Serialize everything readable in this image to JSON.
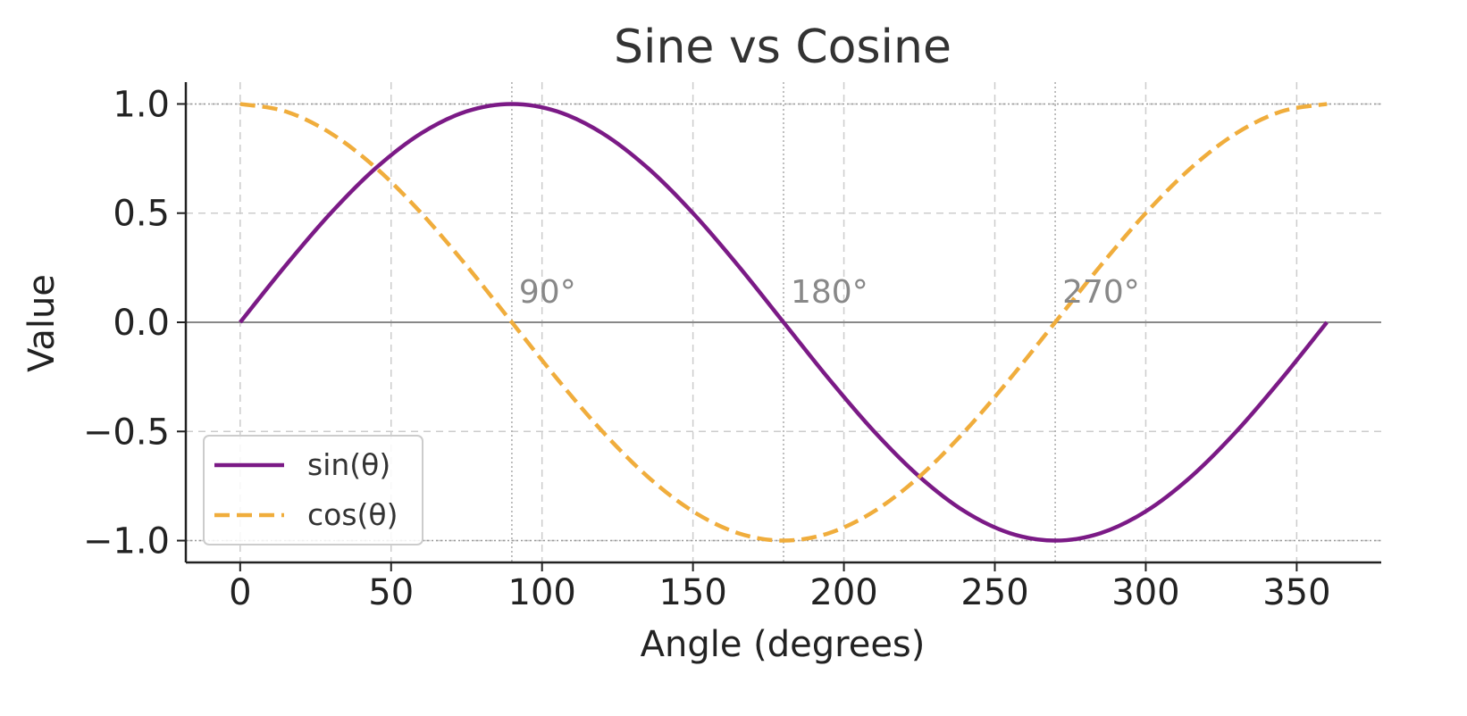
{
  "chart_data": {
    "type": "line",
    "title": "Sine vs Cosine",
    "xlabel": "Angle (degrees)",
    "ylabel": "Value",
    "xlim": [
      -18,
      378
    ],
    "ylim": [
      -1.1,
      1.1
    ],
    "xticks": [
      0,
      50,
      100,
      150,
      200,
      250,
      300,
      350
    ],
    "xtick_labels": [
      "0",
      "50",
      "100",
      "150",
      "200",
      "250",
      "300",
      "350"
    ],
    "yticks": [
      -1.0,
      -0.5,
      0.0,
      0.5,
      1.0
    ],
    "ytick_labels": [
      "−1.0",
      "−0.5",
      "0.0",
      "0.5",
      "1.0"
    ],
    "grid": true,
    "legend_position": "lower-left",
    "x": [
      0,
      15,
      30,
      45,
      60,
      75,
      90,
      105,
      120,
      135,
      150,
      165,
      180,
      195,
      210,
      225,
      240,
      255,
      270,
      285,
      300,
      315,
      330,
      345,
      360
    ],
    "series": [
      {
        "name": "sin(θ)",
        "style": "solid",
        "color": "#7b1a86",
        "values": [
          0.0,
          0.259,
          0.5,
          0.707,
          0.866,
          0.966,
          1.0,
          0.966,
          0.866,
          0.707,
          0.5,
          0.259,
          0.0,
          -0.259,
          -0.5,
          -0.707,
          -0.866,
          -0.966,
          -1.0,
          -0.966,
          -0.866,
          -0.707,
          -0.5,
          -0.259,
          0.0
        ]
      },
      {
        "name": "cos(θ)",
        "style": "dashed",
        "color": "#f0ad3c",
        "values": [
          1.0,
          0.966,
          0.866,
          0.707,
          0.5,
          0.259,
          0.0,
          -0.259,
          -0.5,
          -0.707,
          -0.866,
          -0.966,
          -1.0,
          -0.966,
          -0.866,
          -0.707,
          -0.5,
          -0.259,
          0.0,
          0.259,
          0.5,
          0.707,
          0.866,
          0.966,
          1.0
        ]
      }
    ],
    "reference_lines": {
      "horizontal": [
        0.0,
        1.0,
        -1.0
      ],
      "vertical": [
        90,
        180,
        270
      ]
    },
    "annotations": [
      {
        "x": 90,
        "y": 0.0,
        "text": "90°"
      },
      {
        "x": 180,
        "y": 0.0,
        "text": "180°"
      },
      {
        "x": 270,
        "y": 0.0,
        "text": "270°"
      }
    ]
  }
}
